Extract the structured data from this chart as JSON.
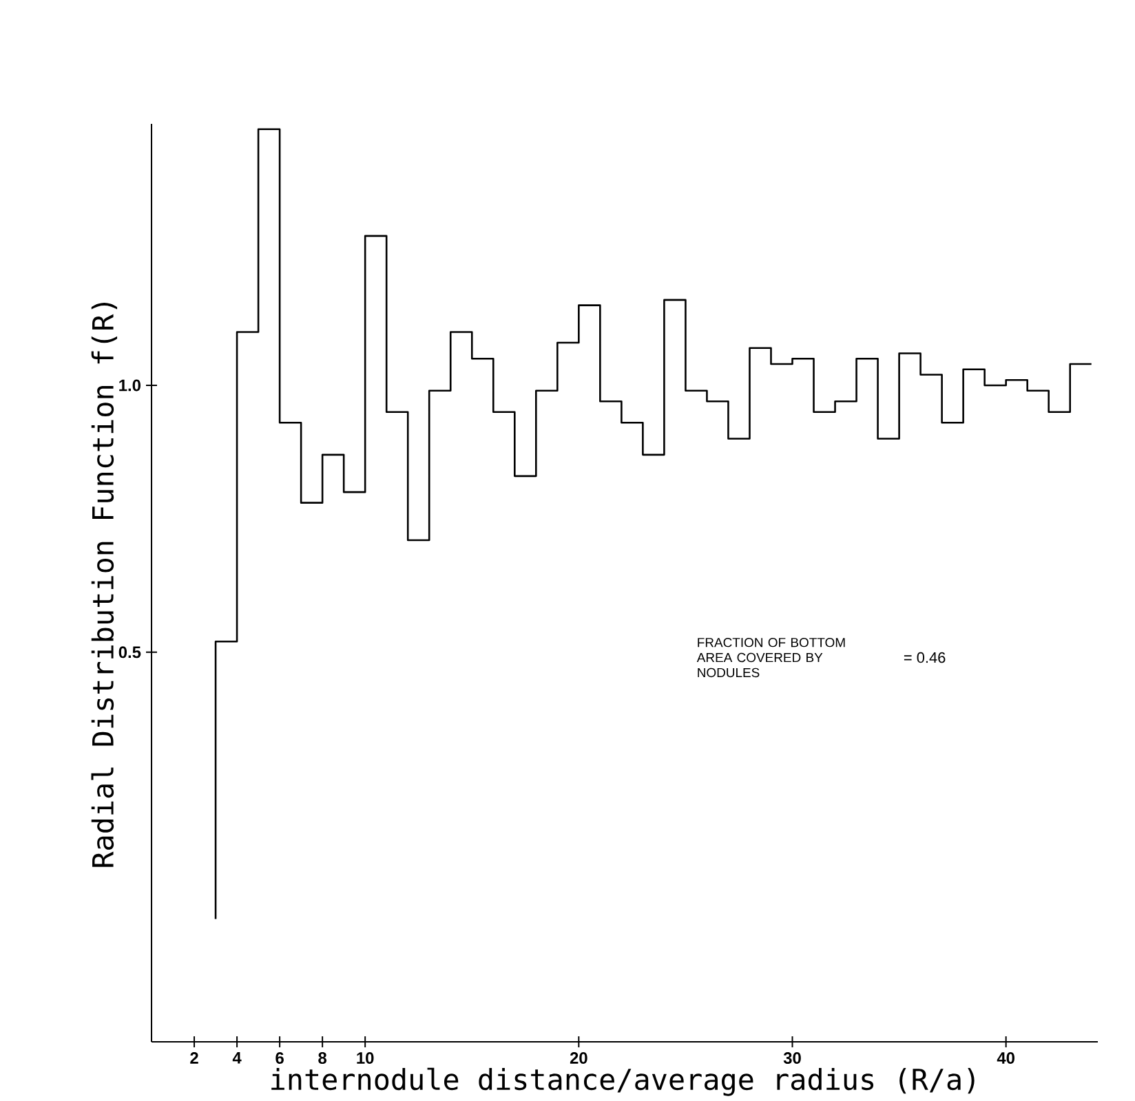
{
  "chart_data": {
    "type": "histogram",
    "xlabel": "internodule distance/average radius (R/a)",
    "ylabel": "Radial Distribution Function f(R)",
    "bins": [
      3,
      4,
      5,
      6,
      7,
      8,
      9,
      10,
      11,
      12,
      13,
      14,
      15,
      16,
      17,
      18,
      19,
      20,
      21,
      22,
      23,
      24,
      25,
      26,
      27,
      28,
      29,
      30,
      31,
      32,
      33,
      34,
      35,
      36,
      37,
      38,
      39,
      40,
      41,
      42,
      43,
      44
    ],
    "values": [
      0.52,
      1.1,
      1.48,
      0.93,
      0.78,
      0.87,
      0.8,
      1.28,
      0.95,
      0.71,
      0.99,
      1.1,
      1.05,
      0.95,
      0.83,
      0.99,
      1.08,
      1.15,
      0.97,
      0.93,
      0.87,
      1.16,
      0.99,
      0.97,
      0.9,
      1.07,
      1.04,
      1.05,
      0.95,
      0.97,
      1.05,
      0.9,
      1.06,
      1.02,
      0.93,
      1.03,
      1.0,
      1.01,
      0.99,
      0.95,
      1.04
    ],
    "color": "#000000",
    "xlim": [
      0,
      44.3
    ],
    "ylim": [
      -0.23,
      1.49
    ],
    "xticks": [
      2,
      4,
      6,
      8,
      10,
      20,
      30,
      40
    ],
    "yticks": [
      {
        "value": 0.5,
        "label": "0.5"
      },
      {
        "value": 1.0,
        "label": "1.0"
      }
    ],
    "grid": false,
    "annotations": [
      "FRACTION OF BOTTOM AREA COVERED BY NODULES",
      "= 0.46"
    ]
  }
}
